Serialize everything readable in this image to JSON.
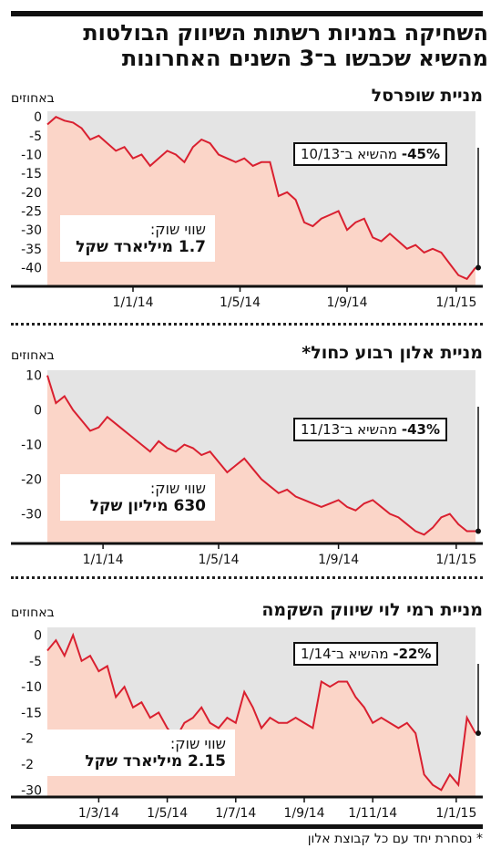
{
  "headline": "השחיקה במניות רשתות השיווק הבולטות מהשיא שכבשו ב־3 השנים האחרונות",
  "footnote": "* נסחרת יחד עם כל קבוצת אלון",
  "colors": {
    "line": "#d92030",
    "fill": "#fbd5c8",
    "bg": "#e4e4e4"
  },
  "panels": [
    {
      "title": "מניית שופרסל",
      "unit": "באחוזים",
      "callout_pct": "45%-",
      "callout_text": "מהשיא ב־10/13",
      "mcap_label": "שווי שוק:",
      "mcap_value": "1.7 מיליארד שקל",
      "chart_data": {
        "type": "area",
        "ylim": [
          -44,
          1.5
        ],
        "yticks": [
          0,
          -5,
          -10,
          -15,
          -20,
          -25,
          -30,
          -35,
          -40
        ],
        "xticks": [
          "1/1/14",
          "1/5/14",
          "1/9/14",
          "1/1/15"
        ],
        "x": [
          0,
          0.02,
          0.04,
          0.06,
          0.08,
          0.1,
          0.12,
          0.14,
          0.16,
          0.18,
          0.2,
          0.22,
          0.24,
          0.26,
          0.28,
          0.3,
          0.32,
          0.34,
          0.36,
          0.38,
          0.4,
          0.42,
          0.44,
          0.46,
          0.48,
          0.5,
          0.52,
          0.54,
          0.56,
          0.58,
          0.6,
          0.62,
          0.64,
          0.66,
          0.68,
          0.7,
          0.72,
          0.74,
          0.76,
          0.78,
          0.8,
          0.82,
          0.84,
          0.86,
          0.88,
          0.9,
          0.92,
          0.94,
          0.96,
          0.98,
          1.0
        ],
        "values": [
          -2,
          0,
          -1,
          -1.5,
          -3,
          -6,
          -5,
          -7,
          -9,
          -8,
          -11,
          -10,
          -13,
          -11,
          -9,
          -10,
          -12,
          -8,
          -6,
          -7,
          -10,
          -11,
          -12,
          -11,
          -13,
          -12,
          -12,
          -21,
          -20,
          -22,
          -28,
          -29,
          -27,
          -26,
          -25,
          -30,
          -28,
          -27,
          -32,
          -33,
          -31,
          -33,
          -35,
          -34,
          -36,
          -35,
          -36,
          -39,
          -42,
          -43,
          -40
        ]
      }
    },
    {
      "title": "מניית אלון רבוע כחול*",
      "unit": "באחוזים",
      "callout_pct": "43%-",
      "callout_text": "מהשיא ב־11/13",
      "mcap_label": "שווי שוק:",
      "mcap_value": "630 מיליון שקל",
      "chart_data": {
        "type": "area",
        "ylim": [
          -37.5,
          11.5
        ],
        "yticks": [
          10,
          0,
          -10,
          -20,
          -30
        ],
        "xticks": [
          "1/1/14",
          "1/5/14",
          "1/9/14",
          "1/1/15"
        ],
        "x": [
          0,
          0.02,
          0.04,
          0.06,
          0.08,
          0.1,
          0.12,
          0.14,
          0.16,
          0.18,
          0.2,
          0.22,
          0.24,
          0.26,
          0.28,
          0.3,
          0.32,
          0.34,
          0.36,
          0.38,
          0.4,
          0.42,
          0.44,
          0.46,
          0.48,
          0.5,
          0.52,
          0.54,
          0.56,
          0.58,
          0.6,
          0.62,
          0.64,
          0.66,
          0.68,
          0.7,
          0.72,
          0.74,
          0.76,
          0.78,
          0.8,
          0.82,
          0.84,
          0.86,
          0.88,
          0.9,
          0.92,
          0.94,
          0.96,
          0.98,
          1.0
        ],
        "values": [
          10,
          2,
          4,
          0,
          -3,
          -6,
          -5,
          -2,
          -4,
          -6,
          -8,
          -10,
          -12,
          -9,
          -11,
          -12,
          -10,
          -11,
          -13,
          -12,
          -15,
          -18,
          -16,
          -14,
          -17,
          -20,
          -22,
          -24,
          -23,
          -25,
          -26,
          -27,
          -28,
          -27,
          -26,
          -28,
          -29,
          -27,
          -26,
          -28,
          -30,
          -31,
          -33,
          -35,
          -36,
          -34,
          -31,
          -30,
          -33,
          -35,
          -35
        ]
      }
    },
    {
      "title": "מניית רמי לוי שיווק השקמה",
      "unit": "באחוזים",
      "callout_pct": "22%-",
      "callout_text": "מהשיא ב־1/14",
      "mcap_label": "שווי שוק:",
      "mcap_value": "2.15 מיליארד שקל",
      "chart_data": {
        "type": "area",
        "ylim": [
          -31,
          1.5
        ],
        "yticks": [
          0,
          -5,
          -10,
          -15,
          -20,
          -25,
          -30
        ],
        "xticks": [
          "1/3/14",
          "1/5/14",
          "1/7/14",
          "1/9/14",
          "1/11/14",
          "1/1/15"
        ],
        "x": [
          0,
          0.02,
          0.04,
          0.06,
          0.08,
          0.1,
          0.12,
          0.14,
          0.16,
          0.18,
          0.2,
          0.22,
          0.24,
          0.26,
          0.28,
          0.3,
          0.32,
          0.34,
          0.36,
          0.38,
          0.4,
          0.42,
          0.44,
          0.46,
          0.48,
          0.5,
          0.52,
          0.54,
          0.56,
          0.58,
          0.6,
          0.62,
          0.64,
          0.66,
          0.68,
          0.7,
          0.72,
          0.74,
          0.76,
          0.78,
          0.8,
          0.82,
          0.84,
          0.86,
          0.88,
          0.9,
          0.92,
          0.94,
          0.96,
          0.98,
          1.0
        ],
        "values": [
          -3,
          -1,
          -4,
          0,
          -5,
          -4,
          -7,
          -6,
          -12,
          -10,
          -14,
          -13,
          -16,
          -15,
          -18,
          -20,
          -17,
          -16,
          -14,
          -17,
          -18,
          -16,
          -17,
          -11,
          -14,
          -18,
          -16,
          -17,
          -17,
          -16,
          -17,
          -18,
          -9,
          -10,
          -9,
          -9,
          -12,
          -14,
          -17,
          -16,
          -17,
          -18,
          -17,
          -19,
          -27,
          -29,
          -30,
          -27,
          -29,
          -16,
          -19
        ]
      }
    }
  ]
}
